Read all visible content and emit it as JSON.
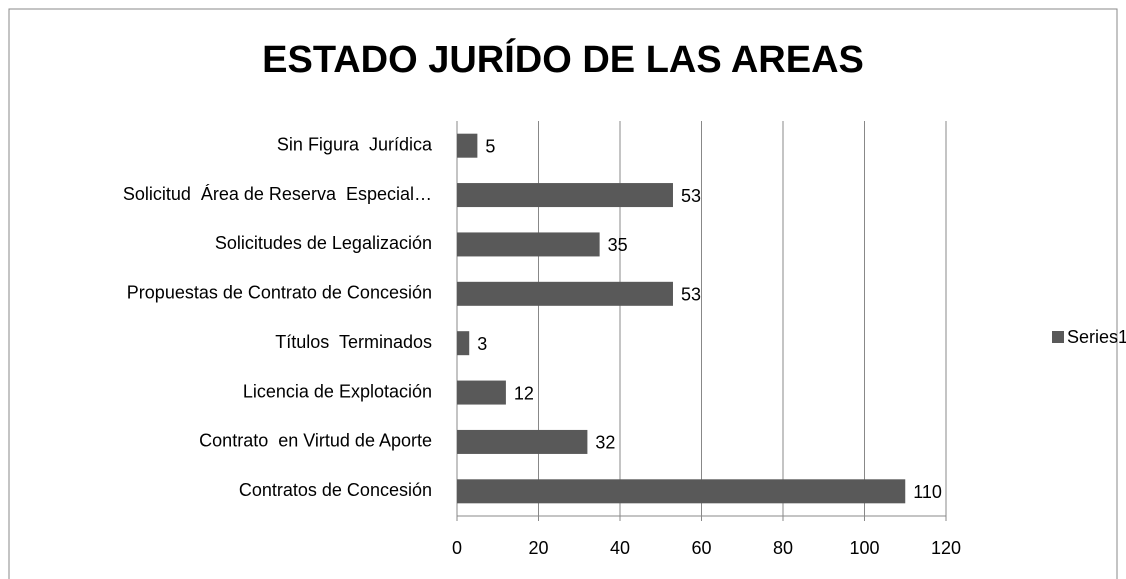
{
  "chart_data": {
    "type": "bar",
    "orientation": "horizontal",
    "title": "ESTADO JURÍDO DE LAS AREAS",
    "categories": [
      "Sin Figura  Jurídica",
      "Solicitud  Área de Reserva  Especial…",
      "Solicitudes de Legalización",
      "Propuestas de Contrato de Concesión",
      "Títulos  Terminados",
      "Licencia de Explotación",
      "Contrato  en Virtud de Aporte",
      "Contratos de Concesión"
    ],
    "series": [
      {
        "name": "Series1",
        "color": "#595959",
        "values": [
          5,
          53,
          35,
          53,
          3,
          12,
          32,
          110
        ]
      }
    ],
    "xlim": [
      0,
      120
    ],
    "xticks": [
      0,
      20,
      40,
      60,
      80,
      100,
      120
    ],
    "grid": true,
    "legend": "right"
  }
}
